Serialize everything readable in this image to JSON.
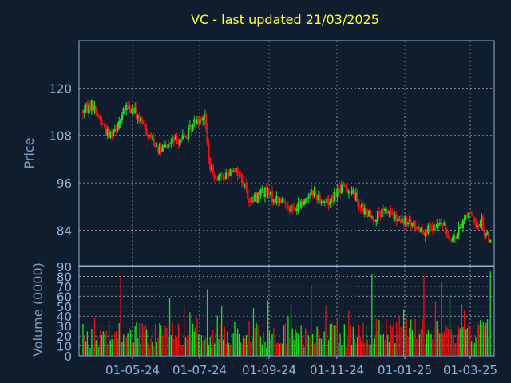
{
  "colors": {
    "background": "#0f1d2e",
    "axis": "#8fb3d9",
    "title": "#ffff33",
    "label": "#7f9fc4",
    "grid": "#a0a8b0",
    "up": "#22dd22",
    "down": "#ee1111"
  },
  "chart_data": [
    {
      "type": "candlestick",
      "title": "VC - last updated 21/03/2025",
      "ylabel": "Price",
      "ylim": [
        75,
        132
      ],
      "yticks": [
        120,
        108,
        96,
        84
      ],
      "xticks": [
        "01-05-24",
        "01-07-24",
        "01-09-24",
        "01-11-24",
        "01-01-25",
        "01-03-25"
      ],
      "grid": true,
      "trend": [
        [
          0,
          114
        ],
        [
          6,
          116
        ],
        [
          12,
          112
        ],
        [
          18,
          108
        ],
        [
          24,
          111
        ],
        [
          30,
          115
        ],
        [
          36,
          114
        ],
        [
          42,
          110
        ],
        [
          48,
          107
        ],
        [
          54,
          104
        ],
        [
          60,
          106
        ],
        [
          66,
          107
        ],
        [
          72,
          108
        ],
        [
          78,
          112
        ],
        [
          84,
          113
        ],
        [
          88,
          99
        ],
        [
          96,
          97
        ],
        [
          104,
          100
        ],
        [
          110,
          97
        ],
        [
          116,
          91
        ],
        [
          124,
          94
        ],
        [
          132,
          92
        ],
        [
          140,
          91
        ],
        [
          146,
          89
        ],
        [
          152,
          91
        ],
        [
          158,
          94
        ],
        [
          164,
          92
        ],
        [
          170,
          91
        ],
        [
          176,
          94
        ],
        [
          182,
          95
        ],
        [
          188,
          93
        ],
        [
          194,
          89
        ],
        [
          200,
          87
        ],
        [
          206,
          88
        ],
        [
          212,
          89
        ],
        [
          218,
          86
        ],
        [
          224,
          86
        ],
        [
          230,
          85
        ],
        [
          236,
          84
        ],
        [
          242,
          84
        ],
        [
          248,
          86
        ],
        [
          252,
          83
        ],
        [
          258,
          82
        ],
        [
          264,
          87
        ],
        [
          268,
          89
        ],
        [
          272,
          84
        ],
        [
          276,
          87
        ],
        [
          278,
          83
        ],
        [
          282,
          82
        ]
      ]
    },
    {
      "type": "bar",
      "ylabel": "Volume (0000)",
      "ylim": [
        0,
        90
      ],
      "yticks": [
        0,
        10,
        20,
        30,
        40,
        50,
        60,
        70,
        80,
        90
      ],
      "grid": true,
      "bar_count": 283,
      "spikes": [
        {
          "i": 26,
          "v": 80
        },
        {
          "i": 60,
          "v": 58
        },
        {
          "i": 70,
          "v": 50
        },
        {
          "i": 74,
          "v": 44
        },
        {
          "i": 86,
          "v": 67
        },
        {
          "i": 96,
          "v": 50
        },
        {
          "i": 118,
          "v": 48
        },
        {
          "i": 128,
          "v": 56
        },
        {
          "i": 144,
          "v": 52
        },
        {
          "i": 158,
          "v": 71
        },
        {
          "i": 168,
          "v": 50
        },
        {
          "i": 184,
          "v": 45
        },
        {
          "i": 200,
          "v": 82
        },
        {
          "i": 222,
          "v": 47
        },
        {
          "i": 236,
          "v": 80
        },
        {
          "i": 244,
          "v": 55
        },
        {
          "i": 248,
          "v": 75
        },
        {
          "i": 254,
          "v": 62
        },
        {
          "i": 262,
          "v": 52
        },
        {
          "i": 282,
          "v": 85
        }
      ]
    }
  ]
}
